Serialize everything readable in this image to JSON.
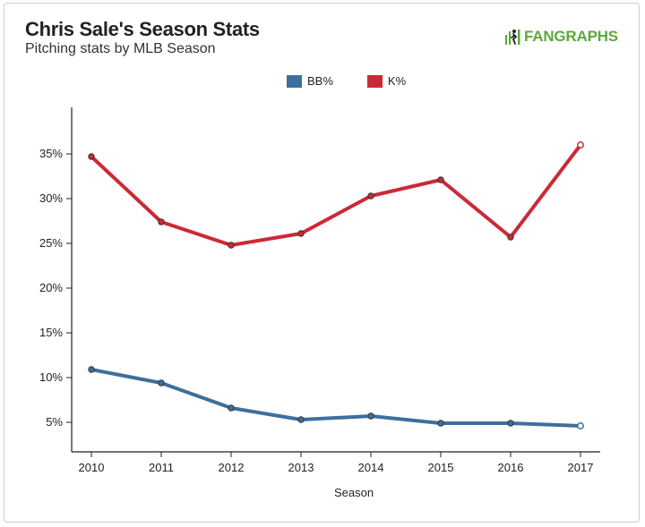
{
  "header": {
    "title": "Chris Sale's Season Stats",
    "subtitle": "Pitching stats by MLB Season",
    "brand": "FANGRAPHS",
    "brand_color": "#5ea73e"
  },
  "chart_data": {
    "type": "line",
    "title": "Chris Sale's Season Stats",
    "subtitle": "Pitching stats by MLB Season",
    "xlabel": "Season",
    "ylabel": "",
    "x": [
      2010,
      2011,
      2012,
      2013,
      2014,
      2015,
      2016,
      2017
    ],
    "x_tick_labels": [
      "2010",
      "2011",
      "2012",
      "2013",
      "2014",
      "2015",
      "2016",
      "2017"
    ],
    "y_ticks": [
      5,
      10,
      15,
      20,
      25,
      30,
      35
    ],
    "y_tick_labels": [
      "5%",
      "10%",
      "15%",
      "20%",
      "25%",
      "30%",
      "35%"
    ],
    "ylim": [
      0,
      40
    ],
    "grid": false,
    "legend_position": "top-center",
    "series": [
      {
        "name": "BB%",
        "color": "#3d6f9e",
        "values": [
          10.9,
          9.4,
          6.6,
          5.3,
          5.7,
          4.9,
          4.9,
          4.6
        ]
      },
      {
        "name": "K%",
        "color": "#cc2936",
        "values": [
          34.7,
          27.4,
          24.8,
          26.1,
          30.3,
          32.1,
          25.7,
          36.0
        ]
      }
    ],
    "last_point_open": true
  }
}
